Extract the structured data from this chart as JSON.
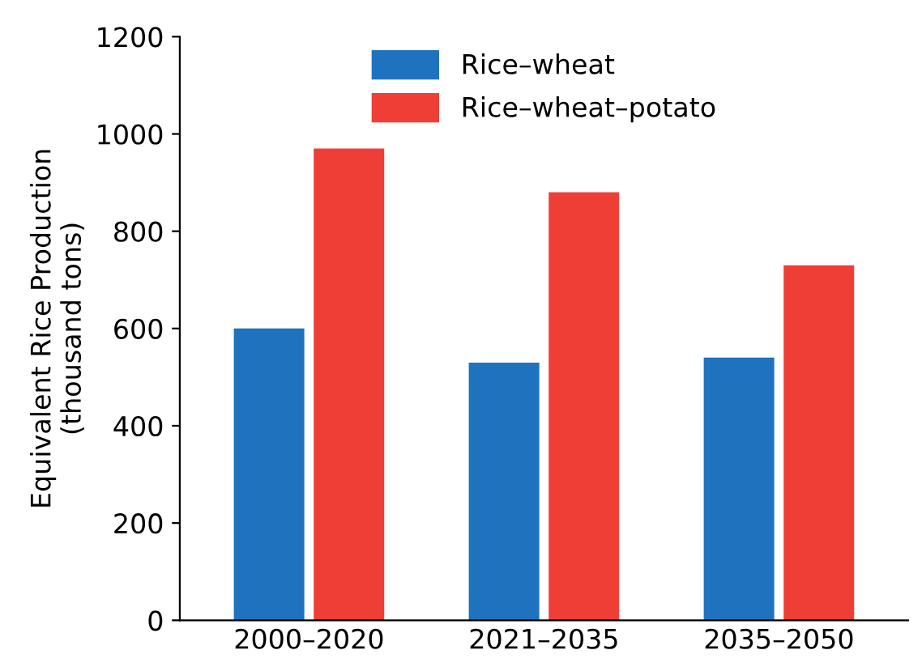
{
  "chart_data": {
    "type": "bar",
    "ylabel": "Equivalent Rice Production\n(thousand tons)",
    "categories": [
      "2000–2020",
      "2021–2035",
      "2035–2050"
    ],
    "series": [
      {
        "name": "Rice–wheat",
        "color": "#1f72be",
        "values": [
          600,
          530,
          540
        ]
      },
      {
        "name": "Rice–wheat–potato",
        "color": "#ef3e36",
        "values": [
          970,
          880,
          730
        ]
      }
    ],
    "ylim": [
      0,
      1200
    ],
    "yticks": [
      0,
      200,
      400,
      600,
      800,
      1000,
      1200
    ],
    "grid": false,
    "legend": "top"
  }
}
